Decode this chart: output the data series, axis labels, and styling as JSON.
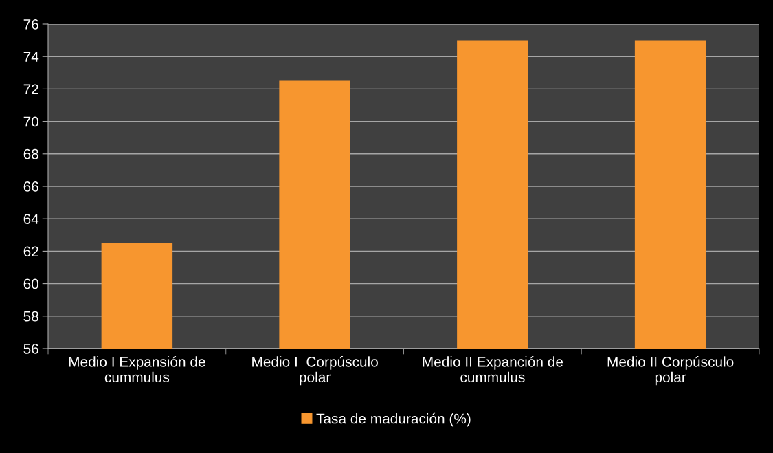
{
  "chart_data": {
    "type": "bar",
    "categories": [
      "Medio I Expansión de\ncummulus",
      "Medio I  Corpúsculo\npolar",
      "Medio II Expanción de\ncummulus",
      "Medio II Corpúsculo\npolar"
    ],
    "series": [
      {
        "name": "Tasa de maduración (%)",
        "color": "#f7962f",
        "values": [
          62.5,
          72.5,
          75,
          75
        ]
      }
    ],
    "ylim": [
      56,
      76
    ],
    "yticks": [
      56,
      58,
      60,
      62,
      64,
      66,
      68,
      70,
      72,
      74,
      76
    ],
    "grid": "y",
    "legend": "bottom"
  }
}
